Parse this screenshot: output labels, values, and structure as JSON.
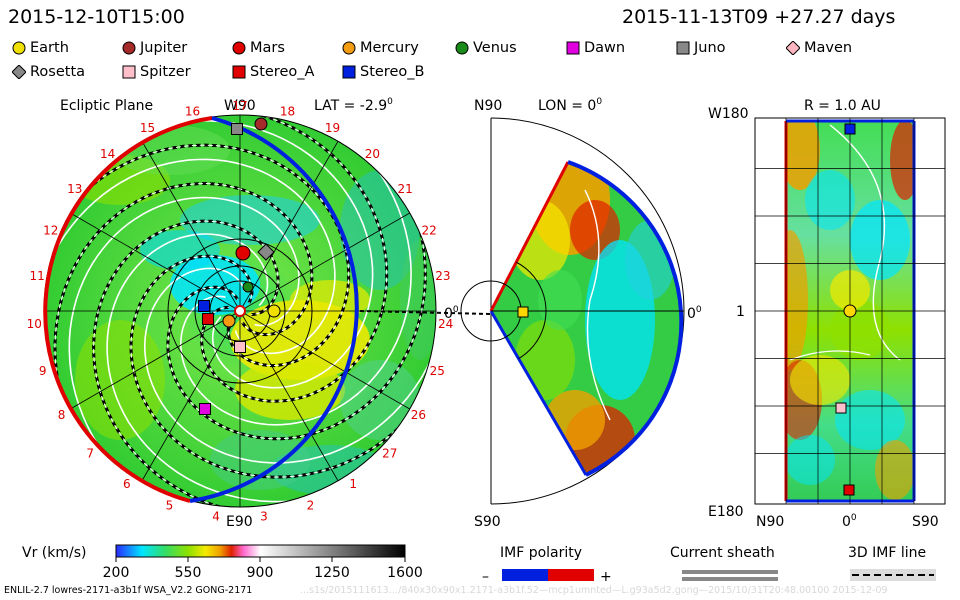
{
  "timestamp_left": "2015-12-10T15:00",
  "timestamp_right": "2015-11-13T09  +27.27 days",
  "legend": [
    {
      "label": "Earth",
      "color": "#f0e000",
      "shape": "circle"
    },
    {
      "label": "Jupiter",
      "color": "#a52a2a",
      "shape": "circle"
    },
    {
      "label": "Mars",
      "color": "#e00000",
      "shape": "circle"
    },
    {
      "label": "Mercury",
      "color": "#f39c12",
      "shape": "circle"
    },
    {
      "label": "Venus",
      "color": "#1a8a1a",
      "shape": "circle"
    },
    {
      "label": "Dawn",
      "color": "#e000e0",
      "shape": "square"
    },
    {
      "label": "Juno",
      "color": "#888888",
      "shape": "square"
    },
    {
      "label": "Maven",
      "color": "#ffb6c1",
      "shape": "diamond"
    },
    {
      "label": "Rosetta",
      "color": "#888888",
      "shape": "diamond"
    },
    {
      "label": "Spitzer",
      "color": "#ffc0cb",
      "shape": "square"
    },
    {
      "label": "Stereo_A",
      "color": "#e00000",
      "shape": "square"
    },
    {
      "label": "Stereo_B",
      "color": "#0020e0",
      "shape": "square"
    }
  ],
  "ecliptic": {
    "title": "Ecliptic Plane",
    "top_label": "W90",
    "lat_label": "LAT = -2.9",
    "lat_sup": "0",
    "bottom_label": "E90",
    "right_label": "0",
    "right_sup": "0",
    "carrington_ticks": [
      "5",
      "6",
      "7",
      "8",
      "9",
      "10",
      "11",
      "12",
      "13",
      "14",
      "15",
      "16",
      "17",
      "18",
      "19",
      "20",
      "21",
      "22",
      "23",
      "24",
      "25",
      "26",
      "27",
      "1",
      "2",
      "3",
      "4"
    ]
  },
  "meridional": {
    "top_label": "N90",
    "lon_label": "LON = 0",
    "lon_sup": "0",
    "bottom_label": "S90",
    "right_label": "0",
    "right_sup": "0"
  },
  "mercator": {
    "title": "R = 1.0 AU",
    "top_left_label": "W180",
    "mid_left_label": "1",
    "bottom_left_label": "E180",
    "bottom_labels": [
      "N90",
      "0",
      "S90"
    ],
    "bottom_mid_sup": "0"
  },
  "colorbar": {
    "title": "Vr (km/s)",
    "ticks": [
      "200",
      "550",
      "900",
      "1250",
      "1600"
    ]
  },
  "imf_polarity": {
    "title": "IMF polarity",
    "minus": "–",
    "plus": "+"
  },
  "current_sheath": {
    "title": "Current sheath"
  },
  "imf_line": {
    "title": "3D IMF line"
  },
  "footer": "ENLIL-2.7 lowres-2171-a3b1f WSA_V2.2 GONG-2171",
  "footer_faint": "...s1s/2015111613…/840x30x90x1.2171-a3b1f.52—mcp1umnted—L.g93a5d2.gong—2015/10/31T20:48.00100     2015-12-09",
  "chart_data": {
    "type": "heatmap",
    "quantity": "Vr (km/s)",
    "range": [
      200,
      1600
    ],
    "palette": [
      "#2a2aff",
      "#00e5ff",
      "#33dd66",
      "#8ee000",
      "#f5ea00",
      "#f0a000",
      "#e02000",
      "#ff66cc",
      "#ffffff",
      "#909090",
      "#000000"
    ]
  }
}
